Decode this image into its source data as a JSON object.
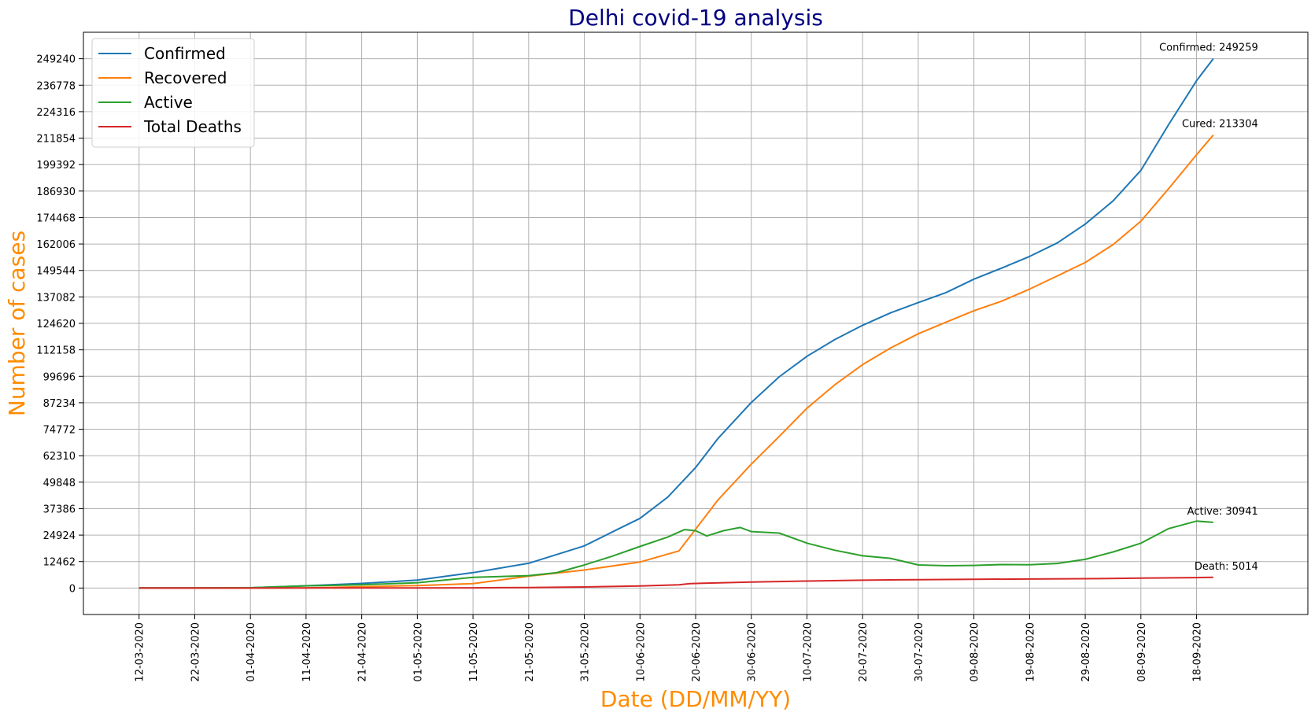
{
  "chart_data": {
    "type": "line",
    "title": "Delhi covid-19 analysis",
    "xlabel": "Date (DD/MM/YY)",
    "ylabel": "Number of cases",
    "title_color": "#000080",
    "label_color": "#ff8c00",
    "grid": true,
    "legend_position": "top-left",
    "x_start": "12-03-2020",
    "x_ticks": [
      "12-03-2020",
      "22-03-2020",
      "01-04-2020",
      "11-04-2020",
      "21-04-2020",
      "01-05-2020",
      "11-05-2020",
      "21-05-2020",
      "31-05-2020",
      "10-06-2020",
      "20-06-2020",
      "30-06-2020",
      "10-07-2020",
      "20-07-2020",
      "30-07-2020",
      "09-08-2020",
      "19-08-2020",
      "29-08-2020",
      "08-09-2020",
      "18-09-2020"
    ],
    "y_ticks": [
      0,
      12462,
      24924,
      37386,
      49848,
      62310,
      74772,
      87234,
      99696,
      112158,
      124620,
      137082,
      149544,
      162006,
      174468,
      186930,
      199392,
      211854,
      224316,
      236778,
      249240
    ],
    "xlim": [
      "02-03-2020",
      "08-10-2020"
    ],
    "ylim": [
      -12462,
      261702
    ],
    "series": [
      {
        "name": "Confirmed",
        "color": "#1f77b4",
        "points": [
          [
            "12-03-2020",
            6
          ],
          [
            "22-03-2020",
            29
          ],
          [
            "01-04-2020",
            152
          ],
          [
            "11-04-2020",
            1069
          ],
          [
            "17-04-2020",
            1707
          ],
          [
            "21-04-2020",
            2156
          ],
          [
            "01-05-2020",
            3738
          ],
          [
            "11-05-2020",
            7233
          ],
          [
            "21-05-2020",
            11659
          ],
          [
            "31-05-2020",
            19844
          ],
          [
            "06-06-2020",
            27654
          ],
          [
            "10-06-2020",
            32810
          ],
          [
            "15-06-2020",
            42829
          ],
          [
            "20-06-2020",
            56746
          ],
          [
            "24-06-2020",
            70390
          ],
          [
            "30-06-2020",
            87360
          ],
          [
            "05-07-2020",
            99444
          ],
          [
            "10-07-2020",
            109140
          ],
          [
            "15-07-2020",
            116993
          ],
          [
            "20-07-2020",
            123747
          ],
          [
            "25-07-2020",
            129531
          ],
          [
            "30-07-2020",
            134403
          ],
          [
            "04-08-2020",
            139156
          ],
          [
            "09-08-2020",
            145427
          ],
          [
            "14-08-2020",
            150652
          ],
          [
            "19-08-2020",
            156139
          ],
          [
            "24-08-2020",
            162527
          ],
          [
            "29-08-2020",
            171366
          ],
          [
            "03-09-2020",
            182306
          ],
          [
            "08-09-2020",
            196636
          ],
          [
            "13-09-2020",
            218304
          ],
          [
            "18-09-2020",
            238828
          ],
          [
            "21-09-2020",
            249259
          ]
        ]
      },
      {
        "name": "Recovered",
        "color": "#ff7f0e",
        "points": [
          [
            "12-03-2020",
            0
          ],
          [
            "22-03-2020",
            6
          ],
          [
            "01-04-2020",
            6
          ],
          [
            "11-04-2020",
            25
          ],
          [
            "21-04-2020",
            611
          ],
          [
            "01-05-2020",
            1167
          ],
          [
            "11-05-2020",
            2069
          ],
          [
            "21-05-2020",
            5567
          ],
          [
            "31-05-2020",
            8478
          ],
          [
            "10-06-2020",
            12245
          ],
          [
            "17-06-2020",
            17457
          ],
          [
            "20-06-2020",
            27741
          ],
          [
            "24-06-2020",
            41437
          ],
          [
            "30-06-2020",
            58348
          ],
          [
            "05-07-2020",
            71339
          ],
          [
            "10-07-2020",
            84694
          ],
          [
            "15-07-2020",
            95699
          ],
          [
            "20-07-2020",
            105220
          ],
          [
            "25-07-2020",
            112981
          ],
          [
            "30-07-2020",
            119724
          ],
          [
            "04-08-2020",
            125226
          ],
          [
            "09-08-2020",
            130587
          ],
          [
            "14-08-2020",
            135108
          ],
          [
            "19-08-2020",
            140767
          ],
          [
            "24-08-2020",
            146996
          ],
          [
            "29-08-2020",
            153294
          ],
          [
            "03-09-2020",
            161706
          ],
          [
            "08-09-2020",
            172763
          ],
          [
            "13-09-2020",
            188122
          ],
          [
            "18-09-2020",
            204000
          ],
          [
            "21-09-2020",
            213304
          ]
        ]
      },
      {
        "name": "Active",
        "color": "#2ca02c",
        "points": [
          [
            "12-03-2020",
            6
          ],
          [
            "22-03-2020",
            22
          ],
          [
            "01-04-2020",
            144
          ],
          [
            "11-04-2020",
            1021
          ],
          [
            "21-04-2020",
            1500
          ],
          [
            "01-05-2020",
            2507
          ],
          [
            "11-05-2020",
            5022
          ],
          [
            "21-05-2020",
            5850
          ],
          [
            "26-05-2020",
            7200
          ],
          [
            "31-05-2020",
            10858
          ],
          [
            "05-06-2020",
            15000
          ],
          [
            "10-06-2020",
            19581
          ],
          [
            "15-06-2020",
            24000
          ],
          [
            "18-06-2020",
            27500
          ],
          [
            "20-06-2020",
            27000
          ],
          [
            "22-06-2020",
            24500
          ],
          [
            "25-06-2020",
            27000
          ],
          [
            "28-06-2020",
            28500
          ],
          [
            "30-06-2020",
            26600
          ],
          [
            "05-07-2020",
            25900
          ],
          [
            "10-07-2020",
            21146
          ],
          [
            "15-07-2020",
            17807
          ],
          [
            "20-07-2020",
            15166
          ],
          [
            "25-07-2020",
            14000
          ],
          [
            "30-07-2020",
            10887
          ],
          [
            "04-08-2020",
            10500
          ],
          [
            "09-08-2020",
            10667
          ],
          [
            "14-08-2020",
            11068
          ],
          [
            "19-08-2020",
            11000
          ],
          [
            "24-08-2020",
            11600
          ],
          [
            "29-08-2020",
            13500
          ],
          [
            "03-09-2020",
            17000
          ],
          [
            "08-09-2020",
            21100
          ],
          [
            "13-09-2020",
            28000
          ],
          [
            "18-09-2020",
            31500
          ],
          [
            "21-09-2020",
            30941
          ]
        ]
      },
      {
        "name": "Total Deaths",
        "color": "#d62728",
        "points": [
          [
            "12-03-2020",
            0
          ],
          [
            "01-04-2020",
            2
          ],
          [
            "11-04-2020",
            19
          ],
          [
            "21-04-2020",
            47
          ],
          [
            "01-05-2020",
            64
          ],
          [
            "11-05-2020",
            115
          ],
          [
            "21-05-2020",
            231
          ],
          [
            "31-05-2020",
            508
          ],
          [
            "10-06-2020",
            984
          ],
          [
            "17-06-2020",
            1500
          ],
          [
            "19-06-2020",
            2100
          ],
          [
            "30-06-2020",
            2803
          ],
          [
            "10-07-2020",
            3300
          ],
          [
            "20-07-2020",
            3690
          ],
          [
            "30-07-2020",
            3936
          ],
          [
            "09-08-2020",
            4131
          ],
          [
            "19-08-2020",
            4257
          ],
          [
            "29-08-2020",
            4404
          ],
          [
            "08-09-2020",
            4638
          ],
          [
            "18-09-2020",
            4907
          ],
          [
            "21-09-2020",
            5014
          ]
        ]
      }
    ],
    "annotations": [
      {
        "text": "Confirmed: 249259",
        "x": "21-09-2020",
        "y": 249259
      },
      {
        "text": "Cured: 213304",
        "x": "21-09-2020",
        "y": 213304
      },
      {
        "text": "Active: 30941",
        "x": "21-09-2020",
        "y": 30941
      },
      {
        "text": "Death: 5014",
        "x": "21-09-2020",
        "y": 5014
      }
    ]
  }
}
